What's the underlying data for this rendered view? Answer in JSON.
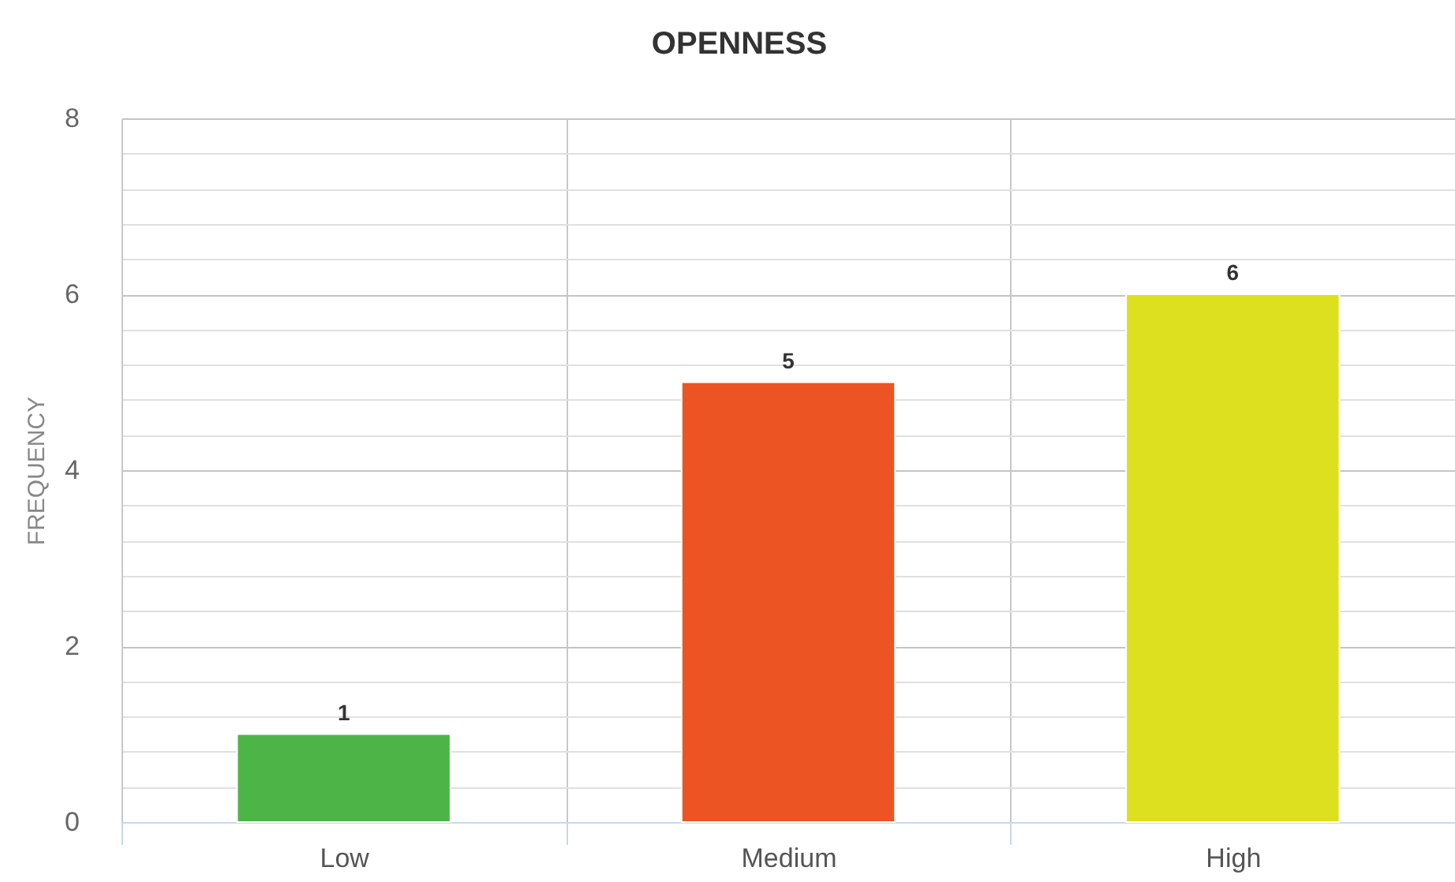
{
  "chart_data": {
    "type": "bar",
    "title": "OPENNESS",
    "ylabel": "FREQUENCY",
    "categories": [
      "Low",
      "Medium",
      "High"
    ],
    "values": [
      1,
      5,
      6
    ],
    "colors": [
      "#4db548",
      "#ed5424",
      "#dde01e"
    ],
    "ylim": [
      0,
      8
    ],
    "yticks": [
      0,
      {
        "value": 0.4,
        "label": null
      },
      {
        "value": 0.8,
        "label": null
      },
      {
        "value": 1.2,
        "label": null
      },
      {
        "value": 1.6,
        "label": null
      },
      2,
      {
        "value": 2.4,
        "label": null
      },
      {
        "value": 2.8,
        "label": null
      },
      {
        "value": 3.2,
        "label": null
      },
      {
        "value": 3.6,
        "label": null
      },
      4,
      {
        "value": 4.4,
        "label": null
      },
      {
        "value": 4.8,
        "label": null
      },
      {
        "value": 5.2,
        "label": null
      },
      {
        "value": 5.6,
        "label": null
      },
      6,
      {
        "value": 6.4,
        "label": null
      },
      {
        "value": 6.8,
        "label": null
      },
      {
        "value": 7.2,
        "label": null
      },
      {
        "value": 7.6,
        "label": null
      },
      8
    ],
    "grid": true,
    "data_labels": true
  }
}
